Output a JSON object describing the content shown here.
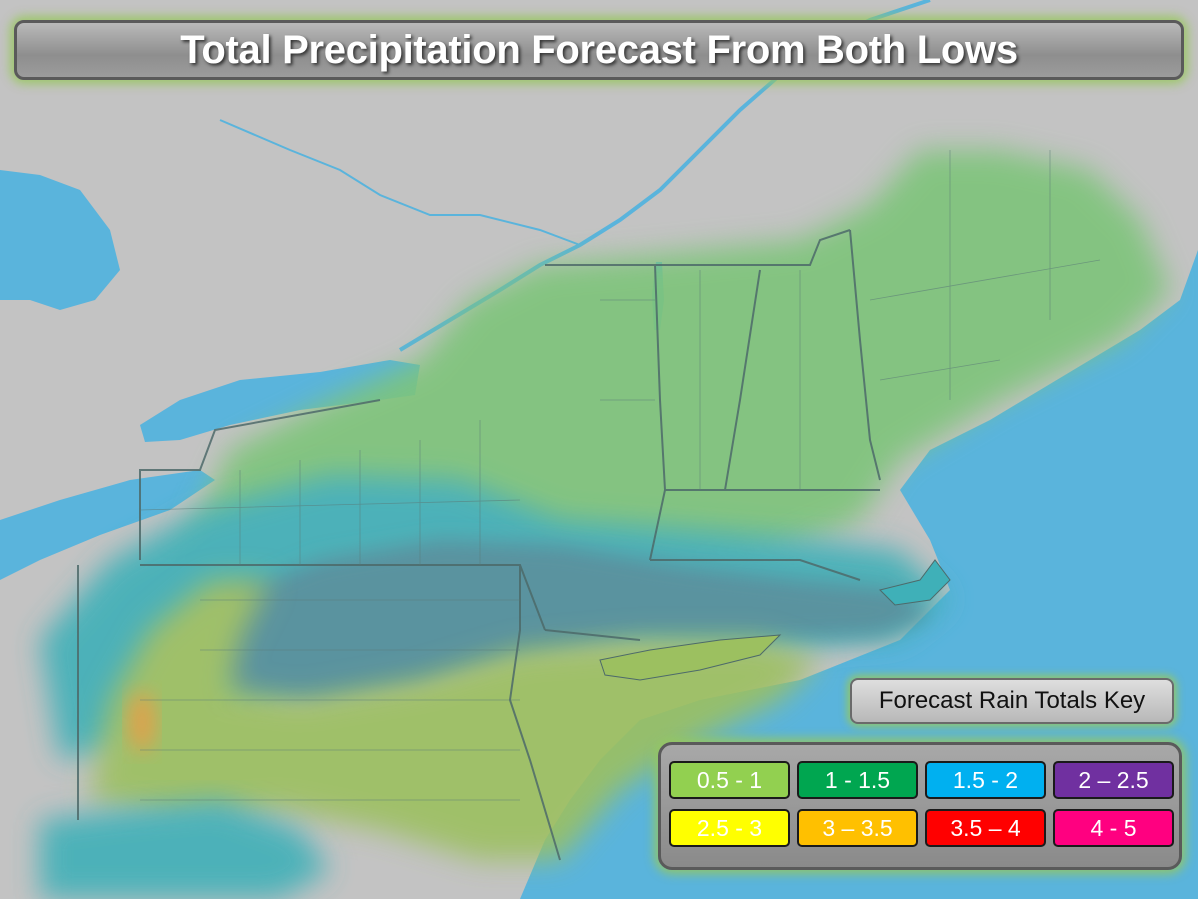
{
  "title": "Total Precipitation Forecast From Both Lows",
  "key_label": "Forecast Rain Totals Key",
  "legend": [
    {
      "label": "0.5 - 1",
      "color": "#92d050"
    },
    {
      "label": "1 - 1.5",
      "color": "#00a650"
    },
    {
      "label": "1.5 - 2",
      "color": "#00b0f0"
    },
    {
      "label": "2 – 2.5",
      "color": "#7030a0"
    },
    {
      "label": "2.5 - 3",
      "color": "#ffff00"
    },
    {
      "label": "3 – 3.5",
      "color": "#ffc000"
    },
    {
      "label": "3.5 – 4",
      "color": "#ff0000"
    },
    {
      "label": "4 - 5",
      "color": "#ff0080"
    }
  ],
  "map_colors": {
    "land": "#c3c3c3",
    "water": "#5ab4dc",
    "band_light_green": "#7ec47a",
    "band_blue": "#3fb0b8",
    "band_slate": "#4f8e9c",
    "band_yellow_green": "#9cc060",
    "band_orange": "#e0a040",
    "borders": "#4d6a6a"
  }
}
